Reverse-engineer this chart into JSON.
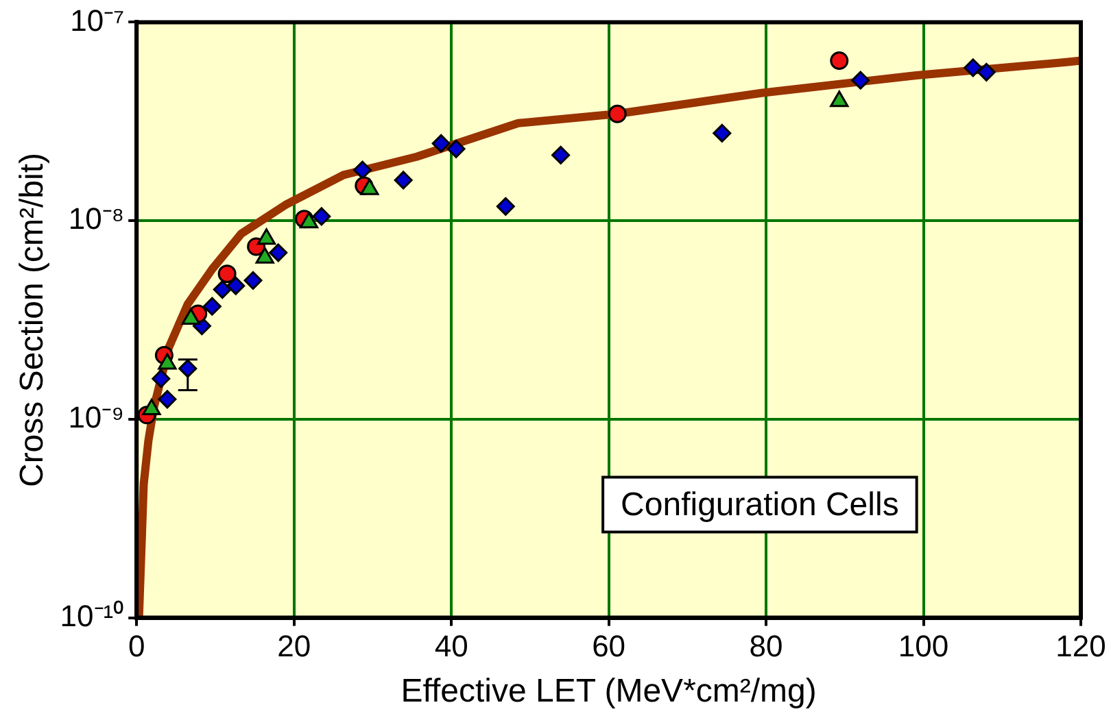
{
  "chart_data": {
    "type": "scatter",
    "xlabel": "Effective LET (MeV*cm²/mg)",
    "ylabel": "Cross Section (cm²/bit)",
    "log": "y",
    "xlim": [
      0,
      120
    ],
    "xticks": [
      0,
      20,
      40,
      60,
      80,
      100,
      120
    ],
    "ylim": [
      1e-10,
      1e-07
    ],
    "yticks": [
      {
        "value": 1e-10,
        "label": "10⁻¹⁰"
      },
      {
        "value": 1e-09,
        "label": "10⁻⁹"
      },
      {
        "value": 1e-08,
        "label": "10⁻⁸"
      },
      {
        "value": 1e-07,
        "label": "10⁻⁷"
      }
    ],
    "grid": true,
    "legend": false,
    "annotations": [
      "Configuration Cells"
    ],
    "series": [
      {
        "type": "line",
        "color": "#993300",
        "marker": "none",
        "x": [
          0.3,
          0.9,
          1.5,
          2.2,
          4.1,
          6.5,
          9.6,
          13.3,
          18.9,
          26.3,
          35.6,
          48.5,
          61,
          79.4,
          99.1,
          118.3,
          120
        ],
        "values": [
          1e-10,
          4.7e-10,
          7.8e-10,
          1.15e-09,
          2.3e-09,
          3.8e-09,
          5.7e-09,
          8.6e-09,
          1.2e-08,
          1.7e-08,
          2.1e-08,
          3.1e-08,
          3.45e-08,
          4.4e-08,
          5.4e-08,
          6.3e-08,
          6.4e-08
        ]
      },
      {
        "type": "scatter",
        "color": "#0000cc",
        "marker": "diamond",
        "x": [
          3.1,
          3.9,
          6.5,
          8.3,
          9.6,
          10.9,
          12.6,
          14.8,
          18,
          23.5,
          28.7,
          33.9,
          38.7,
          40.6,
          46.9,
          53.9,
          74.4,
          92,
          106.3,
          108
        ],
        "values": [
          1.6e-09,
          1.26e-09,
          1.8e-09,
          2.95e-09,
          3.7e-09,
          4.5e-09,
          4.7e-09,
          5e-09,
          6.9e-09,
          1.05e-08,
          1.8e-08,
          1.6e-08,
          2.45e-08,
          2.3e-08,
          1.18e-08,
          2.14e-08,
          2.76e-08,
          5.1e-08,
          5.9e-08,
          5.6e-08
        ],
        "errors": [
          null,
          null,
          [
            1.4e-09,
            2e-09
          ],
          null,
          null,
          null,
          null,
          null,
          null,
          null,
          null,
          null,
          null,
          null,
          null,
          null,
          null,
          null,
          null,
          null
        ]
      },
      {
        "type": "scatter",
        "color": "#ee1111",
        "marker": "circle",
        "x": [
          1.3,
          3.5,
          7.8,
          11.5,
          15.2,
          21.3,
          28.9,
          61.1,
          89.3
        ],
        "values": [
          1.05e-09,
          2.1e-09,
          3.4e-09,
          5.4e-09,
          7.4e-09,
          1.02e-08,
          1.5e-08,
          3.45e-08,
          6.4e-08
        ]
      },
      {
        "type": "scatter",
        "color": "#22aa22",
        "marker": "triangle",
        "x": [
          1.9,
          3.9,
          6.9,
          16.3,
          16.5,
          21.9,
          29.6,
          89.3
        ],
        "values": [
          1.12e-09,
          1.9e-09,
          3.2e-09,
          6.5e-09,
          8.1e-09,
          9.8e-09,
          1.44e-08,
          4e-08
        ]
      }
    ]
  }
}
